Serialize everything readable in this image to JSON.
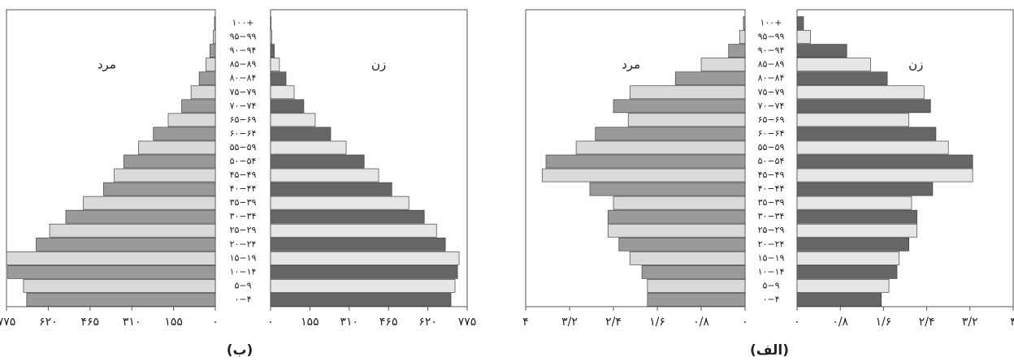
{
  "chart_data": [
    {
      "type": "pyramid",
      "title": "(ب)",
      "categories": [
        "۰−۴",
        "۵−۹",
        "۱۰−۱۴",
        "۱۵−۱۹",
        "۲۰−۲۴",
        "۲۵−۲۹",
        "۳۰−۳۴",
        "۳۵−۳۹",
        "۴۰−۴۴",
        "۴۵−۴۹",
        "۵۰−۵۴",
        "۵۵−۵۹",
        "۶۰−۶۴",
        "۶۵−۶۹",
        "۷۰−۷۴",
        "۷۵−۷۹",
        "۸۰−۸۴",
        "۸۵−۸۹",
        "۹۰−۹۴",
        "۹۵−۹۹",
        "۱۰۰+"
      ],
      "series": [
        {
          "name": "مرد",
          "colors": [
            "#9a9a9a",
            "#d9d9d9"
          ],
          "values": [
            700,
            712,
            770,
            775,
            665,
            615,
            555,
            490,
            415,
            375,
            340,
            285,
            230,
            175,
            125,
            90,
            60,
            35,
            20,
            8,
            3
          ]
        },
        {
          "name": "زن",
          "colors": [
            "#666666",
            "#e6e6e6"
          ],
          "values": [
            711,
            727,
            737,
            743,
            689,
            654,
            606,
            545,
            478,
            426,
            369,
            298,
            237,
            176,
            131,
            93,
            61,
            35,
            15,
            5,
            2
          ]
        }
      ],
      "xlim": [
        0,
        775
      ],
      "xticks": [
        {
          "value": 0,
          "label": "۰"
        },
        {
          "value": 155,
          "label": "۱۵۵"
        },
        {
          "value": 310,
          "label": "۳۱۰"
        },
        {
          "value": 465,
          "label": "۴۶۵"
        },
        {
          "value": 620,
          "label": "۶۲۰"
        },
        {
          "value": 775,
          "label": "۷۷۵"
        }
      ]
    },
    {
      "type": "pyramid",
      "title": "(الف)",
      "categories": [
        "۰−۴",
        "۵−۹",
        "۱۰−۱۴",
        "۱۵−۱۹",
        "۲۰−۲۴",
        "۲۵−۲۹",
        "۳۰−۳۴",
        "۳۵−۳۹",
        "۴۰−۴۴",
        "۴۵−۴۹",
        "۵۰−۵۴",
        "۵۵−۵۹",
        "۶۰−۶۴",
        "۶۵−۶۹",
        "۷۰−۷۴",
        "۷۵−۷۹",
        "۸۰−۸۴",
        "۸۵−۸۹",
        "۹۰−۹۴",
        "۹۵−۹۹",
        "۱۰۰+"
      ],
      "series": [
        {
          "name": "مرد",
          "colors": [
            "#9a9a9a",
            "#d9d9d9"
          ],
          "values": [
            1.78,
            1.78,
            1.88,
            2.1,
            2.3,
            2.5,
            2.5,
            2.4,
            2.83,
            3.7,
            3.63,
            3.08,
            2.73,
            2.13,
            2.4,
            2.1,
            1.27,
            0.8,
            0.3,
            0.1,
            0.03
          ]
        },
        {
          "name": "زن",
          "colors": [
            "#666666",
            "#e6e6e6"
          ],
          "values": [
            1.56,
            1.7,
            1.85,
            1.89,
            2.07,
            2.22,
            2.22,
            2.12,
            2.51,
            3.25,
            3.25,
            2.8,
            2.57,
            2.07,
            2.47,
            2.35,
            1.67,
            1.36,
            0.92,
            0.25,
            0.12
          ]
        }
      ],
      "xlim": [
        0,
        4
      ],
      "xticks": [
        {
          "value": 0,
          "label": "۰"
        },
        {
          "value": 0.8,
          "label": "۰/۸"
        },
        {
          "value": 1.6,
          "label": "۱/۶"
        },
        {
          "value": 2.4,
          "label": "۲/۴"
        },
        {
          "value": 3.2,
          "label": "۳/۲"
        },
        {
          "value": 4,
          "label": "۴"
        }
      ]
    }
  ]
}
